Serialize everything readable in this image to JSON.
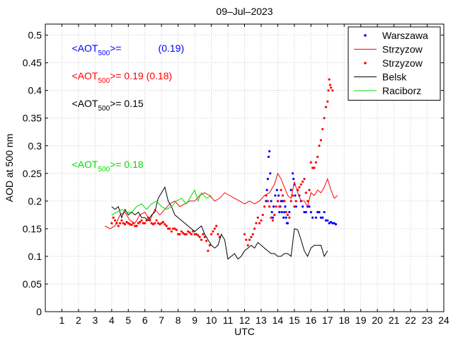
{
  "chart_data": {
    "type": "line",
    "title": "09–Jul–2023",
    "xlabel": "UTC",
    "ylabel": "AOD at 500 nm",
    "xlim": [
      0,
      24
    ],
    "ylim": [
      0,
      0.52
    ],
    "xticks": [
      1,
      2,
      3,
      4,
      5,
      6,
      7,
      8,
      9,
      10,
      11,
      12,
      13,
      14,
      15,
      16,
      17,
      18,
      19,
      20,
      21,
      22,
      23,
      24
    ],
    "yticks": [
      0,
      0.05,
      0.1,
      0.15,
      0.2,
      0.25,
      0.3,
      0.35,
      0.4,
      0.45,
      0.5
    ],
    "ytick_labels": [
      "0",
      "0.05",
      "0.1",
      "0.15",
      "0.2",
      "0.25",
      "0.3",
      "0.35",
      "0.4",
      "0.45",
      "0.5"
    ],
    "grid": true,
    "legend_position": "top-right",
    "colors": {
      "warszawa": "#0000ff",
      "strzyzow": "#ff0000",
      "belsk": "#000000",
      "raciborz": "#00dd00"
    },
    "annotations": [
      {
        "lines": [
          "<AOT",
          "500",
          ">=",
          "(0.19)"
        ],
        "color": "#0000ff",
        "x": 1.6,
        "y": 0.47
      },
      {
        "lines": [
          "<AOT",
          "500",
          ">= 0.19 (0.18)",
          ""
        ],
        "color": "#ff0000",
        "x": 1.6,
        "y": 0.42
      },
      {
        "lines": [
          "<AOT",
          "500",
          ">= 0.15",
          ""
        ],
        "color": "#000000",
        "x": 1.6,
        "y": 0.37
      },
      {
        "lines": [
          "<AOT",
          "500",
          ">= 0.18",
          ""
        ],
        "color": "#00dd00",
        "x": 1.6,
        "y": 0.26
      }
    ],
    "series": [
      {
        "name": "Warszawa",
        "style": "dots",
        "color": "#0000ff",
        "x": [
          13.3,
          13.35,
          13.4,
          13.45,
          13.5,
          13.55,
          13.6,
          13.65,
          13.7,
          13.75,
          13.85,
          13.95,
          14.0,
          14.05,
          14.1,
          14.15,
          14.2,
          14.25,
          14.3,
          14.35,
          14.4,
          14.45,
          14.5,
          14.55,
          14.6,
          14.7,
          14.8,
          14.9,
          14.95,
          15.0,
          15.05,
          15.1,
          15.2,
          15.3,
          15.4,
          15.5,
          15.6,
          15.7,
          15.8,
          15.9,
          16.0,
          16.1,
          16.3,
          16.4,
          16.5,
          16.6,
          16.7,
          16.8,
          16.9,
          17.0,
          17.1,
          17.2,
          17.3,
          17.4,
          17.5
        ],
        "y": [
          0.2,
          0.22,
          0.24,
          0.28,
          0.29,
          0.25,
          0.2,
          0.18,
          0.17,
          0.19,
          0.21,
          0.22,
          0.2,
          0.21,
          0.18,
          0.19,
          0.2,
          0.18,
          0.2,
          0.17,
          0.18,
          0.19,
          0.17,
          0.16,
          0.16,
          0.18,
          0.22,
          0.25,
          0.24,
          0.23,
          0.21,
          0.19,
          0.22,
          0.21,
          0.2,
          0.19,
          0.18,
          0.18,
          0.19,
          0.19,
          0.18,
          0.17,
          0.17,
          0.18,
          0.18,
          0.17,
          0.17,
          0.18,
          0.165,
          0.165,
          0.16,
          0.162,
          0.16,
          0.16,
          0.158
        ]
      },
      {
        "name": "Strzyzow",
        "style": "line",
        "color": "#ff0000",
        "x": [
          3.6,
          3.9,
          4.2,
          4.5,
          4.8,
          5.1,
          5.4,
          5.7,
          6.0,
          6.3,
          6.6,
          6.9,
          7.2,
          7.5,
          7.8,
          8.1,
          8.4,
          8.7,
          9.0,
          9.3,
          9.6,
          9.9,
          10.2,
          10.5,
          10.8,
          11.1,
          11.4,
          11.7,
          12.0,
          12.3,
          12.6,
          12.9,
          13.2,
          13.5,
          13.8,
          14.0,
          14.2,
          14.4,
          14.6,
          14.8,
          15.0,
          15.2,
          15.4,
          15.6,
          15.8,
          16.0,
          16.2,
          16.4,
          16.6,
          16.8,
          17.0,
          17.2,
          17.4,
          17.6
        ],
        "y": [
          0.155,
          0.15,
          0.155,
          0.175,
          0.18,
          0.165,
          0.16,
          0.175,
          0.18,
          0.165,
          0.185,
          0.175,
          0.185,
          0.195,
          0.2,
          0.19,
          0.195,
          0.2,
          0.2,
          0.21,
          0.215,
          0.21,
          0.2,
          0.205,
          0.215,
          0.21,
          0.205,
          0.2,
          0.195,
          0.2,
          0.195,
          0.2,
          0.21,
          0.215,
          0.23,
          0.25,
          0.24,
          0.225,
          0.21,
          0.205,
          0.235,
          0.215,
          0.2,
          0.2,
          0.19,
          0.215,
          0.21,
          0.22,
          0.215,
          0.225,
          0.24,
          0.22,
          0.205,
          0.21
        ]
      },
      {
        "name": "Strzyzow",
        "style": "dots",
        "color": "#ff0000",
        "x": [
          4.0,
          4.1,
          4.2,
          4.3,
          4.4,
          4.5,
          4.6,
          4.7,
          4.8,
          4.9,
          5.0,
          5.1,
          5.2,
          5.3,
          5.4,
          5.5,
          5.6,
          5.7,
          5.8,
          5.9,
          6.0,
          6.1,
          6.2,
          6.3,
          6.4,
          6.5,
          6.6,
          6.7,
          6.8,
          6.9,
          7.0,
          7.1,
          7.2,
          7.3,
          7.4,
          7.5,
          7.6,
          7.7,
          7.8,
          7.9,
          8.0,
          8.1,
          8.2,
          8.3,
          8.4,
          8.5,
          8.6,
          8.7,
          8.8,
          8.9,
          9.0,
          9.1,
          9.2,
          9.3,
          9.4,
          9.5,
          9.6,
          9.7,
          9.8,
          9.9,
          10.0,
          10.1,
          10.2,
          10.3,
          10.4,
          10.5,
          12.0,
          12.1,
          12.2,
          12.3,
          12.4,
          12.5,
          12.6,
          12.7,
          12.8,
          12.9,
          13.0,
          13.1,
          13.2,
          13.3,
          13.4,
          13.5,
          13.6,
          13.7,
          13.8,
          13.9,
          14.0,
          14.1,
          14.2,
          14.3,
          14.4,
          14.5,
          14.6,
          14.7,
          14.8,
          14.9,
          15.0,
          15.1,
          15.2,
          15.3,
          15.4,
          15.5,
          15.6,
          15.7,
          15.8,
          15.9,
          16.0,
          16.1,
          16.2,
          16.3,
          16.4,
          16.5,
          16.6,
          16.7,
          16.8,
          16.9,
          17.0,
          17.05,
          17.1,
          17.15,
          17.2,
          17.3
        ],
        "y": [
          0.16,
          0.17,
          0.165,
          0.16,
          0.155,
          0.16,
          0.165,
          0.16,
          0.158,
          0.162,
          0.16,
          0.158,
          0.157,
          0.16,
          0.155,
          0.155,
          0.16,
          0.162,
          0.165,
          0.16,
          0.16,
          0.165,
          0.17,
          0.165,
          0.16,
          0.158,
          0.16,
          0.165,
          0.16,
          0.158,
          0.16,
          0.162,
          0.158,
          0.155,
          0.15,
          0.15,
          0.145,
          0.15,
          0.15,
          0.148,
          0.14,
          0.14,
          0.145,
          0.142,
          0.14,
          0.14,
          0.145,
          0.143,
          0.14,
          0.145,
          0.14,
          0.14,
          0.138,
          0.135,
          0.13,
          0.14,
          0.135,
          0.128,
          0.11,
          0.12,
          0.14,
          0.145,
          0.15,
          0.155,
          0.14,
          0.135,
          0.14,
          0.13,
          0.12,
          0.13,
          0.135,
          0.14,
          0.15,
          0.16,
          0.17,
          0.16,
          0.165,
          0.175,
          0.19,
          0.21,
          0.2,
          0.19,
          0.17,
          0.165,
          0.175,
          0.19,
          0.2,
          0.19,
          0.22,
          0.21,
          0.2,
          0.18,
          0.175,
          0.17,
          0.2,
          0.21,
          0.19,
          0.2,
          0.22,
          0.225,
          0.23,
          0.235,
          0.24,
          0.215,
          0.2,
          0.22,
          0.27,
          0.26,
          0.26,
          0.27,
          0.28,
          0.3,
          0.31,
          0.33,
          0.35,
          0.37,
          0.38,
          0.4,
          0.42,
          0.41,
          0.405,
          0.4
        ]
      },
      {
        "name": "Belsk",
        "style": "line",
        "color": "#000000",
        "x": [
          4.0,
          4.2,
          4.4,
          4.6,
          4.8,
          5.0,
          5.2,
          5.4,
          5.6,
          5.8,
          6.0,
          6.2,
          6.4,
          6.6,
          6.8,
          7.0,
          7.2,
          7.4,
          7.6,
          7.8,
          8.0,
          8.2,
          8.4,
          8.6,
          8.8,
          9.0,
          9.2,
          9.4,
          9.6,
          9.8,
          10.0,
          10.2,
          10.4,
          10.6,
          10.8,
          11.0,
          11.2,
          11.4,
          11.6,
          11.8,
          12.0,
          12.2,
          12.4,
          12.6,
          12.8,
          13.0,
          13.2,
          13.4,
          13.6,
          13.8,
          14.0,
          14.2,
          14.4,
          14.6,
          14.8,
          15.0,
          15.2,
          15.4,
          15.6,
          15.8,
          16.0,
          16.2,
          16.4,
          16.6,
          16.8,
          17.0
        ],
        "y": [
          0.19,
          0.185,
          0.19,
          0.17,
          0.185,
          0.175,
          0.18,
          0.175,
          0.18,
          0.17,
          0.17,
          0.165,
          0.175,
          0.18,
          0.205,
          0.215,
          0.225,
          0.2,
          0.19,
          0.175,
          0.17,
          0.165,
          0.16,
          0.155,
          0.15,
          0.145,
          0.15,
          0.155,
          0.14,
          0.13,
          0.12,
          0.115,
          0.12,
          0.14,
          0.13,
          0.095,
          0.1,
          0.105,
          0.095,
          0.1,
          0.11,
          0.115,
          0.12,
          0.115,
          0.125,
          0.12,
          0.115,
          0.11,
          0.105,
          0.105,
          0.1,
          0.1,
          0.105,
          0.105,
          0.1,
          0.15,
          0.148,
          0.13,
          0.11,
          0.1,
          0.115,
          0.12,
          0.12,
          0.12,
          0.1,
          0.11
        ]
      },
      {
        "name": "Raciborz",
        "style": "line",
        "color": "#00dd00",
        "x": [
          4.0,
          4.3,
          4.6,
          4.9,
          5.2,
          5.5,
          5.8,
          6.1,
          6.4,
          6.7,
          7.0,
          7.3,
          7.6,
          7.9,
          8.2,
          8.5,
          8.8,
          9.0,
          9.2,
          9.4,
          9.7,
          10.0
        ],
        "y": [
          0.175,
          0.18,
          0.185,
          0.18,
          0.18,
          0.19,
          0.195,
          0.185,
          0.195,
          0.2,
          0.19,
          0.185,
          0.19,
          0.2,
          0.205,
          0.195,
          0.21,
          0.22,
          0.2,
          0.215,
          0.205,
          0.21
        ]
      }
    ]
  },
  "legend": {
    "items": [
      {
        "label": "Warszawa",
        "kind": "dot",
        "color": "#0000ff"
      },
      {
        "label": "Strzyzow",
        "kind": "line",
        "color": "#ff0000"
      },
      {
        "label": "Strzyzow",
        "kind": "dot",
        "color": "#ff0000"
      },
      {
        "label": "Belsk",
        "kind": "line",
        "color": "#000000"
      },
      {
        "label": "Raciborz",
        "kind": "line",
        "color": "#00dd00"
      }
    ]
  }
}
